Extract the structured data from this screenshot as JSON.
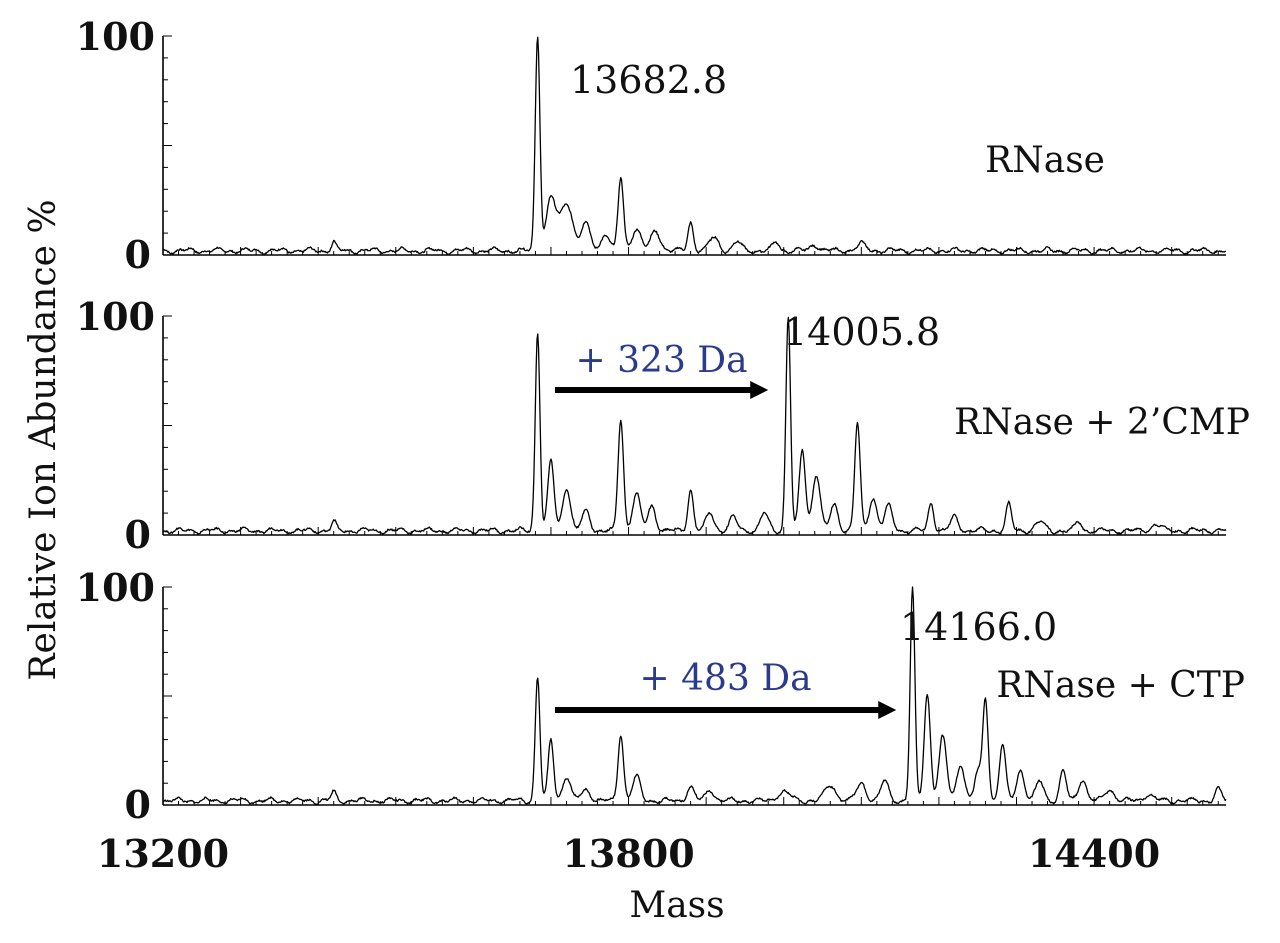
{
  "chart_data": {
    "type": "line",
    "xlabel": "Mass",
    "ylabel": "Relative Ion Abundance %",
    "xlim": [
      13200,
      14570
    ],
    "ylim": [
      0,
      100
    ],
    "x_tick_labels": [
      {
        "value": 13200,
        "label": "13200"
      },
      {
        "value": 13800,
        "label": "13800"
      },
      {
        "value": 14400,
        "label": "14400"
      }
    ],
    "y_tick_labels": [
      "0",
      "100"
    ],
    "panels": [
      {
        "sample": "RNase",
        "peak_label": "13682.8",
        "baseline": 2,
        "peaks": [
          {
            "x": 13420,
            "h": 4,
            "w": 3
          },
          {
            "x": 13682.8,
            "h": 98,
            "w": 3
          },
          {
            "x": 13700,
            "h": 24,
            "w": 6
          },
          {
            "x": 13720,
            "h": 22,
            "w": 8
          },
          {
            "x": 13745,
            "h": 12,
            "w": 6
          },
          {
            "x": 13770,
            "h": 8,
            "w": 5
          },
          {
            "x": 13790,
            "h": 33,
            "w": 3.5
          },
          {
            "x": 13810,
            "h": 10,
            "w": 6
          },
          {
            "x": 13835,
            "h": 9,
            "w": 6
          },
          {
            "x": 13880,
            "h": 13,
            "w": 3.5
          },
          {
            "x": 13910,
            "h": 6,
            "w": 6
          },
          {
            "x": 13940,
            "h": 4,
            "w": 5
          },
          {
            "x": 13990,
            "h": 4,
            "w": 4
          },
          {
            "x": 14040,
            "h": 3,
            "w": 5
          },
          {
            "x": 14100,
            "h": 3,
            "w": 6
          }
        ]
      },
      {
        "sample": "RNase + 2’CMP",
        "peak_label": "14005.8",
        "shift_label": "+ 323 Da",
        "shift_from": 13700,
        "shift_to": 13980,
        "baseline": 2,
        "peaks": [
          {
            "x": 13420,
            "h": 4,
            "w": 3
          },
          {
            "x": 13682.8,
            "h": 91,
            "w": 3
          },
          {
            "x": 13700,
            "h": 32,
            "w": 4
          },
          {
            "x": 13720,
            "h": 20,
            "w": 5
          },
          {
            "x": 13745,
            "h": 9,
            "w": 5
          },
          {
            "x": 13790,
            "h": 51,
            "w": 3.5
          },
          {
            "x": 13810,
            "h": 17,
            "w": 5
          },
          {
            "x": 13830,
            "h": 11,
            "w": 5
          },
          {
            "x": 13880,
            "h": 19,
            "w": 3.5
          },
          {
            "x": 13905,
            "h": 8,
            "w": 5
          },
          {
            "x": 13935,
            "h": 6,
            "w": 5
          },
          {
            "x": 13975,
            "h": 8,
            "w": 5
          },
          {
            "x": 14005.8,
            "h": 98,
            "w": 3
          },
          {
            "x": 14024,
            "h": 37,
            "w": 4
          },
          {
            "x": 14042,
            "h": 26,
            "w": 5
          },
          {
            "x": 14065,
            "h": 12,
            "w": 5
          },
          {
            "x": 14095,
            "h": 49,
            "w": 3.5
          },
          {
            "x": 14115,
            "h": 15,
            "w": 5
          },
          {
            "x": 14135,
            "h": 11,
            "w": 5
          },
          {
            "x": 14190,
            "h": 13,
            "w": 3.5
          },
          {
            "x": 14220,
            "h": 6,
            "w": 5
          },
          {
            "x": 14290,
            "h": 12,
            "w": 3.5
          },
          {
            "x": 14330,
            "h": 4,
            "w": 6
          },
          {
            "x": 14380,
            "h": 4,
            "w": 4
          },
          {
            "x": 14480,
            "h": 3,
            "w": 6
          }
        ]
      },
      {
        "sample": "RNase + CTP",
        "peak_label": "14166.0",
        "shift_label": "+ 483 Da",
        "shift_from": 13700,
        "shift_to": 14145,
        "baseline": 2,
        "peaks": [
          {
            "x": 13420,
            "h": 4,
            "w": 3
          },
          {
            "x": 13682.8,
            "h": 57,
            "w": 3
          },
          {
            "x": 13700,
            "h": 28,
            "w": 3.5
          },
          {
            "x": 13720,
            "h": 11,
            "w": 5
          },
          {
            "x": 13745,
            "h": 5,
            "w": 6
          },
          {
            "x": 13790,
            "h": 31,
            "w": 3.5
          },
          {
            "x": 13810,
            "h": 11,
            "w": 5
          },
          {
            "x": 13880,
            "h": 6,
            "w": 5
          },
          {
            "x": 13905,
            "h": 5,
            "w": 5
          },
          {
            "x": 14000,
            "h": 4,
            "w": 8
          },
          {
            "x": 14060,
            "h": 7,
            "w": 7
          },
          {
            "x": 14100,
            "h": 8,
            "w": 6
          },
          {
            "x": 14130,
            "h": 9,
            "w": 5
          },
          {
            "x": 14166.0,
            "h": 97,
            "w": 3
          },
          {
            "x": 14185,
            "h": 49,
            "w": 4
          },
          {
            "x": 14205,
            "h": 29,
            "w": 5
          },
          {
            "x": 14228,
            "h": 17,
            "w": 5
          },
          {
            "x": 14250,
            "h": 13,
            "w": 4
          },
          {
            "x": 14260,
            "h": 47,
            "w": 3.5
          },
          {
            "x": 14282,
            "h": 26,
            "w": 4
          },
          {
            "x": 14305,
            "h": 14,
            "w": 5
          },
          {
            "x": 14330,
            "h": 9,
            "w": 5
          },
          {
            "x": 14360,
            "h": 14,
            "w": 4
          },
          {
            "x": 14385,
            "h": 10,
            "w": 5
          },
          {
            "x": 14420,
            "h": 5,
            "w": 6
          },
          {
            "x": 14470,
            "h": 3,
            "w": 6
          },
          {
            "x": 14560,
            "h": 5,
            "w": 4
          }
        ]
      }
    ],
    "legend": "none",
    "grid": false
  }
}
